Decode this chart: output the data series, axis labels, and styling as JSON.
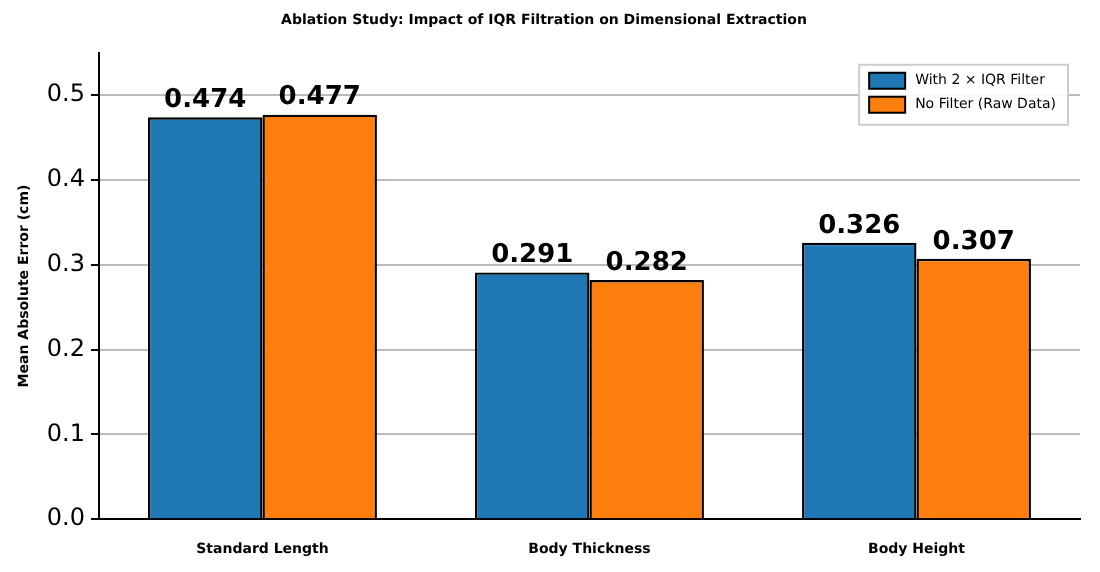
{
  "chart_data": {
    "type": "bar",
    "title": "Ablation Study: Impact of IQR Filtration on Dimensional Extraction",
    "ylabel": "Mean Absolute Error (cm)",
    "categories": [
      "Standard Length",
      "Body Thickness",
      "Body Height"
    ],
    "series": [
      {
        "name": "With 2 × IQR Filter",
        "color": "#1f77b4",
        "values": [
          0.474,
          0.291,
          0.326
        ]
      },
      {
        "name": "No Filter (Raw Data)",
        "color": "#ff7f0e",
        "values": [
          0.477,
          0.282,
          0.307
        ]
      }
    ],
    "ylim": [
      0,
      0.55
    ],
    "yticks": [
      {
        "value": 0,
        "label": "0.0"
      },
      0.1,
      0.2,
      0.3,
      0.4,
      0.5
    ],
    "grid": "y",
    "legend": "top right",
    "data_labels": true
  }
}
